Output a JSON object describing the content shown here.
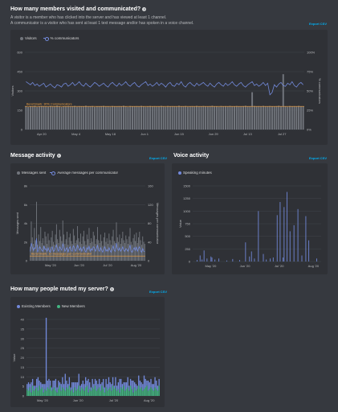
{
  "sections": {
    "members": {
      "title": "How many members visited and communicated?",
      "desc_line1": "A visitor is a member who has clicked into the server and has viewed at least 1 channel.",
      "desc_line2": "A communicator is a visitor who has sent at least 1 text message and/or has spoken in a voice channel.",
      "export_label": "Export CSV"
    },
    "message": {
      "title": "Message activity",
      "export_label": "Export CSV"
    },
    "voice": {
      "title": "Voice activity",
      "export_label": "Export CSV"
    },
    "muted": {
      "title": "How many people muted my server?",
      "export_label": "Export CSV"
    }
  },
  "colors": {
    "background": "#36393f",
    "panel": "#2f3136",
    "bar_gray": "#72767d",
    "line_blurple": "#7289da",
    "benchmark": "#f4a340",
    "green": "#43b581",
    "link": "#00b0f4"
  },
  "chart_data": [
    {
      "id": "members",
      "type": "bar",
      "legend": [
        "Visitors",
        "% communicators"
      ],
      "yaxis_left": {
        "label": "Visitors",
        "ticks": [
          "0",
          "150",
          "300",
          "450",
          "600"
        ],
        "range": [
          0,
          600
        ]
      },
      "yaxis_right": {
        "label": "% communicators",
        "ticks": [
          "0%",
          "25%",
          "50%",
          "75%",
          "100%"
        ],
        "range": [
          0,
          100
        ]
      },
      "xticks": [
        "Apr 20",
        "May 4",
        "May 18",
        "Jun 1",
        "Jun 15",
        "Jun 29",
        "Jul 13",
        "Jul 27"
      ],
      "benchmark": {
        "label": "Benchmark: 30% Communicators",
        "value": 30
      },
      "series": [
        {
          "name": "Visitors",
          "values": [
            180,
            175,
            182,
            178,
            185,
            176,
            180,
            183,
            179,
            181,
            177,
            184,
            178,
            182,
            186,
            180,
            175,
            181,
            179,
            183,
            178,
            180,
            184,
            177,
            182,
            179,
            181,
            185,
            178,
            180,
            183,
            176,
            181,
            179,
            182,
            184,
            178,
            180,
            177,
            183,
            181,
            179,
            182,
            178,
            185,
            180,
            176,
            183,
            179,
            181,
            182,
            178,
            184,
            180,
            177,
            181,
            183,
            179,
            182,
            178,
            180,
            184,
            181,
            177,
            183,
            179,
            182,
            180,
            178,
            185,
            181,
            179,
            183,
            177,
            180,
            182,
            178,
            184,
            181,
            179,
            183,
            180,
            178,
            182,
            185,
            179,
            181,
            177,
            183,
            180,
            182,
            178,
            184,
            181,
            179,
            183,
            180,
            178,
            182,
            185,
            179,
            181,
            290,
            183,
            180,
            182,
            178,
            184,
            181,
            179,
            183,
            180,
            178,
            182,
            185,
            179,
            430,
            181,
            177,
            183,
            180,
            182,
            178,
            184,
            181,
            179
          ]
        },
        {
          "name": "% communicators",
          "values": [
            62,
            60,
            58,
            61,
            57,
            59,
            56,
            58,
            60,
            55,
            57,
            59,
            56,
            54,
            58,
            57,
            55,
            59,
            60,
            56,
            58,
            61,
            57,
            59,
            62,
            58,
            56,
            60,
            57,
            55,
            58,
            61,
            59,
            56,
            58,
            60,
            57,
            55,
            59,
            61,
            58,
            56,
            60,
            57,
            59,
            62,
            58,
            56,
            59,
            61,
            57,
            55,
            58,
            60,
            62,
            57,
            59,
            56,
            58,
            61,
            57,
            60,
            58,
            55,
            59,
            61,
            57,
            56,
            60,
            58,
            62,
            57,
            55,
            59,
            61,
            58,
            56,
            60,
            57,
            59,
            61,
            58,
            56,
            60,
            57,
            55,
            59,
            61,
            58,
            56,
            60,
            57,
            59,
            62,
            58,
            56,
            59,
            61,
            57,
            55,
            58,
            60,
            62,
            57,
            59,
            56,
            58,
            61,
            57,
            60,
            45,
            48,
            58,
            55,
            59,
            61,
            57,
            56,
            60,
            58,
            62,
            57,
            55,
            59,
            61,
            58
          ]
        }
      ]
    },
    {
      "id": "message",
      "type": "bar",
      "legend": [
        "Messages sent",
        "Average messages per communicator"
      ],
      "yaxis_left": {
        "label": "Messages sent",
        "ticks": [
          "0",
          "2k",
          "4k",
          "6k",
          "8k"
        ],
        "range": [
          0,
          8000
        ]
      },
      "yaxis_right": {
        "label": "Messages per communicator",
        "ticks": [
          "0",
          "40",
          "80",
          "120",
          "160"
        ],
        "range": [
          0,
          160
        ]
      },
      "xticks": [
        "May '20",
        "Jun '20",
        "Jul '20",
        "Aug '20"
      ],
      "benchmark": {
        "label": "Benchmark: 10 messages per communicator",
        "value": 10
      },
      "series": [
        {
          "name": "Messages sent",
          "values": [
            1500,
            4200,
            2500,
            1800,
            3500,
            2200,
            6300,
            1700,
            2800,
            2100,
            3600,
            1900,
            2400,
            1600,
            3100,
            2600,
            1800,
            2900,
            2200,
            1500,
            2500,
            3200,
            2000,
            1700,
            2800,
            3900,
            2300,
            1900,
            3300,
            2600,
            2100,
            4300,
            2800,
            1800,
            2300,
            3100,
            1700,
            2500,
            2900,
            2100,
            1800,
            3400,
            2700,
            1900,
            2200,
            3700,
            2400,
            2000,
            2900,
            1800,
            2600,
            3200,
            2100,
            1700,
            2800,
            2300,
            3500,
            1900,
            2400,
            2000,
            3100,
            2700,
            1800,
            2300,
            3600,
            2200,
            1900,
            2800,
            2100,
            1600,
            2500,
            3000,
            2000,
            2400,
            1800,
            2900,
            2200,
            1700,
            2600,
            3300,
            2100,
            1900,
            4100,
            2500,
            2000,
            2800,
            1800,
            2400,
            3100,
            2200,
            1900,
            2700,
            2300,
            1800,
            2600,
            3500,
            2000,
            1700,
            2400,
            2800,
            2100,
            3000,
            1900,
            2500,
            3100,
            2200,
            1700,
            2600,
            2000,
            1800
          ]
        },
        {
          "name": "Average messages per communicator",
          "values": [
            20,
            38,
            30,
            22,
            28,
            26,
            48,
            18,
            24,
            30,
            26,
            22,
            20,
            32,
            24,
            26,
            20,
            28,
            22,
            18,
            26,
            30,
            20,
            22,
            28,
            34,
            24,
            20,
            30,
            26,
            22,
            36,
            30,
            20,
            24,
            28,
            18,
            26,
            30,
            22,
            20,
            32,
            28,
            20,
            24,
            34,
            26,
            22,
            28,
            20,
            26,
            30,
            22,
            18,
            28,
            24,
            32,
            20,
            26,
            22,
            30,
            28,
            20,
            24,
            34,
            22,
            20,
            28,
            22,
            18,
            26,
            30,
            20,
            24,
            20,
            28,
            22,
            18,
            26,
            32,
            22,
            20,
            38,
            26,
            22,
            28,
            20,
            24,
            30,
            22,
            20,
            26,
            24,
            20,
            26,
            34,
            20,
            18,
            24,
            28,
            22,
            30,
            20,
            26,
            30,
            22,
            18,
            26,
            20,
            20
          ]
        }
      ]
    },
    {
      "id": "voice",
      "type": "bar",
      "legend": [
        "Speaking minutes"
      ],
      "yaxis_left": {
        "label": "Value",
        "ticks": [
          "0",
          "250",
          "500",
          "750",
          "1000",
          "1250",
          "1500"
        ],
        "range": [
          0,
          1500
        ]
      },
      "xticks": [
        "May '20",
        "Jun '20",
        "Jul '20",
        "Aug '20"
      ],
      "series": [
        {
          "name": "Speaking minutes",
          "values": [
            0,
            0,
            0,
            0,
            30,
            0,
            0,
            120,
            0,
            40,
            0,
            220,
            0,
            0,
            60,
            0,
            0,
            0,
            100,
            80,
            0,
            0,
            40,
            0,
            0,
            0,
            60,
            0,
            0,
            0,
            0,
            0,
            0,
            0,
            20,
            0,
            0,
            0,
            0,
            0,
            50,
            0,
            0,
            0,
            0,
            0,
            0,
            30,
            0,
            0,
            0,
            0,
            0,
            380,
            0,
            0,
            0,
            100,
            0,
            200,
            0,
            0,
            60,
            0,
            0,
            0,
            1000,
            0,
            0,
            0,
            0,
            150,
            0,
            0,
            40,
            0,
            0,
            0,
            60,
            0,
            0,
            80,
            0,
            0,
            0,
            920,
            0,
            0,
            1180,
            0,
            0,
            80,
            1080,
            0,
            0,
            1380,
            0,
            0,
            600,
            0,
            0,
            0,
            720,
            0,
            0,
            0,
            1040,
            0,
            0,
            0,
            120,
            0,
            0,
            0,
            900,
            0,
            0,
            420,
            0,
            0,
            0,
            0,
            0,
            0,
            0,
            60,
            0,
            0,
            0,
            0
          ]
        }
      ]
    },
    {
      "id": "muted",
      "type": "bar",
      "legend": [
        "Existing Members",
        "New Members"
      ],
      "yaxis_left": {
        "label": "Value",
        "ticks": [
          "0",
          "5",
          "10",
          "15",
          "20",
          "25",
          "30",
          "35",
          "40"
        ],
        "range": [
          0,
          45
        ]
      },
      "xticks": [
        "May '20",
        "Jun '20",
        "Jul '20",
        "Aug '20"
      ],
      "series": [
        {
          "name": "Existing Members",
          "values": [
            3,
            5,
            2,
            6,
            4,
            3,
            2,
            5,
            8,
            3,
            4,
            2,
            5,
            3,
            43,
            4,
            6,
            3,
            2,
            5,
            4,
            7,
            3,
            5,
            2,
            4,
            6,
            3,
            10,
            4,
            3,
            5,
            2,
            4,
            6,
            3,
            5,
            4,
            7,
            3,
            2,
            5,
            4,
            6,
            3,
            8,
            4,
            2,
            5,
            3,
            4,
            6,
            3,
            5,
            4,
            2,
            6,
            3,
            5,
            4,
            7,
            3,
            4,
            5,
            2,
            6,
            3,
            4,
            8,
            5,
            3,
            2,
            5,
            4,
            6,
            3,
            4,
            5,
            7,
            3,
            4,
            2,
            6,
            5,
            3,
            4,
            8,
            5,
            3,
            6,
            4,
            5,
            3,
            4,
            6,
            5,
            3,
            4
          ]
        },
        {
          "name": "New Members",
          "values": [
            4,
            3,
            5,
            2,
            6,
            3,
            4,
            5,
            3,
            6,
            4,
            5,
            2,
            4,
            3,
            5,
            4,
            6,
            3,
            4,
            5,
            3,
            2,
            4,
            6,
            3,
            5,
            4,
            3,
            5,
            4,
            6,
            3,
            4,
            2,
            5,
            3,
            4,
            6,
            3,
            5,
            4,
            3,
            5,
            6,
            2,
            4,
            3,
            5,
            4,
            6,
            3,
            4,
            5,
            3,
            6,
            4,
            2,
            5,
            3,
            4,
            5,
            3,
            6,
            4,
            5,
            3,
            4,
            2,
            5,
            4,
            6,
            3,
            4,
            5,
            3,
            6,
            4,
            2,
            5,
            3,
            4,
            6,
            4,
            5,
            3,
            4,
            5,
            6,
            3,
            4,
            5,
            4,
            3,
            5,
            4,
            3,
            6
          ]
        }
      ]
    }
  ]
}
